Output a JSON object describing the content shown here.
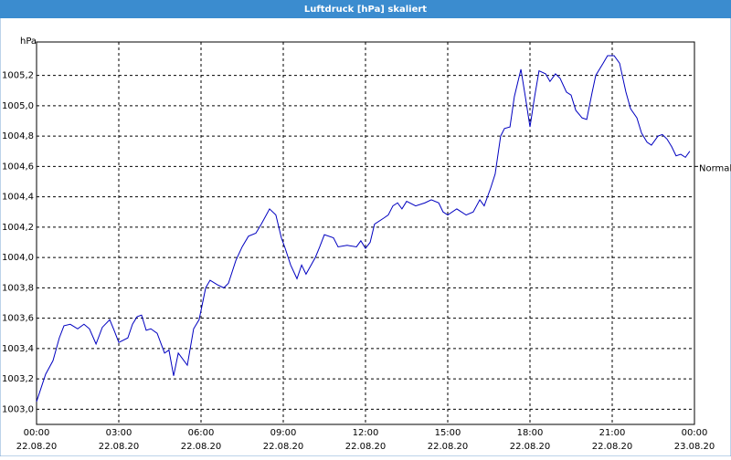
{
  "chart_data": {
    "type": "line",
    "title": "Luftdruck [hPa] skaliert",
    "y_label": "hPa",
    "annotation": {
      "text": "Normal",
      "value": 1004.6
    },
    "xlim": [
      0,
      24
    ],
    "ylim": [
      1002.9,
      1005.42
    ],
    "grid": true,
    "xticks": [
      {
        "value": 0,
        "label": "00:00",
        "date": "22.08.20"
      },
      {
        "value": 3,
        "label": "03:00",
        "date": "22.08.20"
      },
      {
        "value": 6,
        "label": "06:00",
        "date": "22.08.20"
      },
      {
        "value": 9,
        "label": "09:00",
        "date": "22.08.20"
      },
      {
        "value": 12,
        "label": "12:00",
        "date": "22.08.20"
      },
      {
        "value": 15,
        "label": "15:00",
        "date": "22.08.20"
      },
      {
        "value": 18,
        "label": "18:00",
        "date": "22.08.20"
      },
      {
        "value": 21,
        "label": "21:00",
        "date": "22.08.20"
      },
      {
        "value": 24,
        "label": "00:00",
        "date": "23.08.20"
      }
    ],
    "yticks": [
      {
        "value": 1003.0,
        "label": "1003,0"
      },
      {
        "value": 1003.2,
        "label": "1003,2"
      },
      {
        "value": 1003.4,
        "label": "1003,4"
      },
      {
        "value": 1003.6,
        "label": "1003,6"
      },
      {
        "value": 1003.8,
        "label": "1003,8"
      },
      {
        "value": 1004.0,
        "label": "1004,0"
      },
      {
        "value": 1004.2,
        "label": "1004,2"
      },
      {
        "value": 1004.4,
        "label": "1004,4"
      },
      {
        "value": 1004.6,
        "label": "1004,6"
      },
      {
        "value": 1004.8,
        "label": "1004,8"
      },
      {
        "value": 1005.0,
        "label": "1005,0"
      },
      {
        "value": 1005.2,
        "label": "1005,2"
      }
    ],
    "series": [
      {
        "color": "#0000c0",
        "x": [
          0,
          0.33,
          0.6,
          0.83,
          1.0,
          1.23,
          1.5,
          1.73,
          1.93,
          2.17,
          2.4,
          2.67,
          2.83,
          3.0,
          3.33,
          3.5,
          3.67,
          3.83,
          4.0,
          4.17,
          4.4,
          4.67,
          4.83,
          5.0,
          5.17,
          5.5,
          5.73,
          5.93,
          6.17,
          6.33,
          6.6,
          6.83,
          7.0,
          7.27,
          7.5,
          7.73,
          8.0,
          8.2,
          8.5,
          8.73,
          8.93,
          9.07,
          9.27,
          9.5,
          9.67,
          9.83,
          10.17,
          10.33,
          10.5,
          10.83,
          11.0,
          11.33,
          11.67,
          11.83,
          12.0,
          12.17,
          12.33,
          12.67,
          12.83,
          13.0,
          13.17,
          13.33,
          13.5,
          13.83,
          14.17,
          14.4,
          14.67,
          14.83,
          15.0,
          15.33,
          15.67,
          15.93,
          16.17,
          16.33,
          16.57,
          16.73,
          16.93,
          17.07,
          17.27,
          17.43,
          17.67,
          17.83,
          18.0,
          18.17,
          18.33,
          18.57,
          18.73,
          18.93,
          19.1,
          19.33,
          19.5,
          19.67,
          19.9,
          20.07,
          20.27,
          20.4,
          20.67,
          20.83,
          21.07,
          21.27,
          21.5,
          21.67,
          21.9,
          22.07,
          22.27,
          22.43,
          22.67,
          22.83,
          23.0,
          23.17,
          23.33,
          23.5,
          23.67,
          23.83
        ],
        "values": [
          1003.05,
          1003.23,
          1003.32,
          1003.47,
          1003.55,
          1003.56,
          1003.53,
          1003.56,
          1003.53,
          1003.43,
          1003.54,
          1003.59,
          1003.52,
          1003.44,
          1003.47,
          1003.56,
          1003.61,
          1003.62,
          1003.52,
          1003.53,
          1003.5,
          1003.37,
          1003.39,
          1003.22,
          1003.37,
          1003.29,
          1003.53,
          1003.59,
          1003.8,
          1003.85,
          1003.82,
          1003.8,
          1003.83,
          1003.98,
          1004.07,
          1004.14,
          1004.16,
          1004.22,
          1004.32,
          1004.28,
          1004.13,
          1004.06,
          1003.95,
          1003.86,
          1003.95,
          1003.89,
          1004.0,
          1004.07,
          1004.15,
          1004.13,
          1004.07,
          1004.08,
          1004.07,
          1004.11,
          1004.06,
          1004.1,
          1004.22,
          1004.26,
          1004.28,
          1004.34,
          1004.36,
          1004.32,
          1004.37,
          1004.34,
          1004.36,
          1004.38,
          1004.36,
          1004.3,
          1004.28,
          1004.32,
          1004.28,
          1004.3,
          1004.38,
          1004.34,
          1004.46,
          1004.55,
          1004.8,
          1004.85,
          1004.86,
          1005.06,
          1005.24,
          1005.06,
          1004.86,
          1005.06,
          1005.23,
          1005.21,
          1005.16,
          1005.21,
          1005.18,
          1005.09,
          1005.07,
          1004.97,
          1004.92,
          1004.91,
          1005.09,
          1005.2,
          1005.28,
          1005.33,
          1005.33,
          1005.28,
          1005.09,
          1004.98,
          1004.92,
          1004.82,
          1004.76,
          1004.74,
          1004.8,
          1004.81,
          1004.78,
          1004.73,
          1004.67,
          1004.68,
          1004.66,
          1004.7
        ]
      }
    ]
  }
}
